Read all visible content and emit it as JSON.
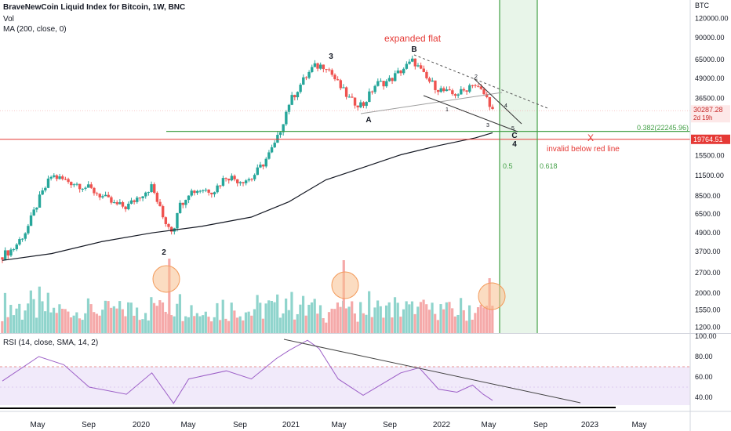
{
  "header": {
    "title": "BraveNewCoin Liquid Index for Bitcoin, 1W, BNC",
    "vol_label": "Vol",
    "ma_label": "MA (200, close, 0)"
  },
  "rsi_header": "RSI (14, close, SMA, 14, 2)",
  "colors": {
    "up": "#26a69a",
    "down": "#ef5350",
    "vol_up": "#8fd4cc",
    "vol_down": "#f5a9a9",
    "ma": "#131722",
    "fib_green": "#43a047",
    "red_line": "#e53935",
    "fib_zone": "#e8f5e9",
    "rsi_line": "#9c5fc7",
    "rsi_band": "#f1eafa",
    "rsi_level": "#e57373",
    "circle": "#f8bf8e"
  },
  "chart_data": {
    "type": "candlestick",
    "price_axis": {
      "currency": "BTC",
      "scale": "log",
      "ticks": [
        120000,
        90000,
        65000,
        49000,
        36500,
        15500,
        11500,
        8500,
        6500,
        4900,
        3700,
        2700,
        2000,
        1550,
        1200
      ],
      "tick_labels": [
        "120000.00",
        "90000.00",
        "65000.00",
        "49000.00",
        "36500.00",
        "15500.00",
        "11500.00",
        "8500.00",
        "6500.00",
        "4900.00",
        "3700.00",
        "2700.00",
        "2000.00",
        "1550.00",
        "1200.00"
      ],
      "current_price": {
        "label": "30287.28",
        "countdown": "2d 19h",
        "value": 30287.28
      },
      "red_level": {
        "label": "19764.51",
        "value": 19764.51
      }
    },
    "rsi_axis": {
      "ticks": [
        100,
        80,
        60,
        40
      ],
      "tick_labels": [
        "100.00",
        "80.00",
        "60.00",
        "40.00"
      ],
      "upper_band": 70,
      "lower_band": 30
    },
    "x_axis": {
      "labels": [
        "May",
        "Sep",
        "2020",
        "May",
        "Sep",
        "2021",
        "May",
        "Sep",
        "2022",
        "May",
        "Sep",
        "2023",
        "May"
      ]
    },
    "close_path": [
      [
        "2019-02-01",
        3500
      ],
      [
        "2019-03-01",
        3900
      ],
      [
        "2019-04-01",
        5100
      ],
      [
        "2019-05-01",
        8000
      ],
      [
        "2019-06-01",
        11500
      ],
      [
        "2019-07-01",
        10800
      ],
      [
        "2019-08-01",
        10200
      ],
      [
        "2019-09-01",
        9500
      ],
      [
        "2019-10-01",
        8500
      ],
      [
        "2019-11-01",
        7500
      ],
      [
        "2019-12-01",
        7200
      ],
      [
        "2020-01-01",
        8500
      ],
      [
        "2020-02-01",
        9800
      ],
      [
        "2020-03-01",
        6000
      ],
      [
        "2020-03-25",
        5000
      ],
      [
        "2020-04-01",
        6800
      ],
      [
        "2020-05-01",
        9000
      ],
      [
        "2020-06-01",
        9400
      ],
      [
        "2020-07-01",
        9200
      ],
      [
        "2020-08-01",
        11500
      ],
      [
        "2020-09-01",
        10700
      ],
      [
        "2020-10-01",
        11000
      ],
      [
        "2020-11-01",
        14000
      ],
      [
        "2020-12-01",
        19000
      ],
      [
        "2021-01-01",
        34000
      ],
      [
        "2021-02-01",
        46000
      ],
      [
        "2021-03-01",
        58000
      ],
      [
        "2021-04-01",
        60000
      ],
      [
        "2021-05-01",
        45000
      ],
      [
        "2021-06-01",
        35000
      ],
      [
        "2021-07-01",
        33000
      ],
      [
        "2021-08-01",
        45000
      ],
      [
        "2021-09-01",
        47000
      ],
      [
        "2021-10-01",
        55000
      ],
      [
        "2021-11-01",
        64000
      ],
      [
        "2021-12-01",
        49000
      ],
      [
        "2022-01-01",
        42000
      ],
      [
        "2022-02-01",
        38500
      ],
      [
        "2022-03-01",
        40000
      ],
      [
        "2022-03-25",
        46000
      ],
      [
        "2022-04-01",
        44000
      ],
      [
        "2022-04-20",
        39500
      ],
      [
        "2022-05-06",
        34000
      ],
      [
        "2022-05-13",
        30287.28
      ]
    ],
    "moving_average_200": [
      [
        "2019-02-01",
        3250
      ],
      [
        "2019-06-01",
        3600
      ],
      [
        "2019-10-01",
        4300
      ],
      [
        "2020-02-01",
        4900
      ],
      [
        "2020-06-01",
        5400
      ],
      [
        "2020-10-01",
        6200
      ],
      [
        "2021-01-01",
        7800
      ],
      [
        "2021-04-01",
        10800
      ],
      [
        "2021-07-01",
        13000
      ],
      [
        "2021-10-01",
        15700
      ],
      [
        "2022-01-01",
        18000
      ],
      [
        "2022-04-01",
        20200
      ],
      [
        "2022-05-13",
        21800
      ]
    ],
    "rsi_path": [
      [
        "2019-02-01",
        56
      ],
      [
        "2019-05-01",
        80
      ],
      [
        "2019-07-01",
        72
      ],
      [
        "2019-09-01",
        50
      ],
      [
        "2019-12-01",
        43
      ],
      [
        "2020-02-01",
        64
      ],
      [
        "2020-03-25",
        34
      ],
      [
        "2020-05-01",
        58
      ],
      [
        "2020-08-01",
        66
      ],
      [
        "2020-10-01",
        58
      ],
      [
        "2020-12-01",
        78
      ],
      [
        "2021-01-01",
        86
      ],
      [
        "2021-02-15",
        96
      ],
      [
        "2021-03-15",
        88
      ],
      [
        "2021-05-01",
        58
      ],
      [
        "2021-07-01",
        42
      ],
      [
        "2021-10-01",
        64
      ],
      [
        "2021-11-15",
        69
      ],
      [
        "2022-01-01",
        48
      ],
      [
        "2022-02-15",
        45
      ],
      [
        "2022-03-25",
        52
      ],
      [
        "2022-04-20",
        43
      ],
      [
        "2022-05-13",
        37
      ]
    ],
    "fib_levels": [
      {
        "label": "0.382(22245.96)",
        "value": 22245.96
      },
      {
        "label": "0.5",
        "date": "2022-05-15"
      },
      {
        "label": "0.618",
        "date": "2022-07-12"
      }
    ],
    "annotations": {
      "expanded_flat": "expanded flat",
      "invalid": "invalid below red line",
      "x_mark": "X",
      "wave_1": "1",
      "wave_2": "2",
      "wave_3": "3",
      "wave_4": "4",
      "wave_5": "5",
      "wave_a": "A",
      "wave_b": "B",
      "wave_c": "C"
    }
  }
}
